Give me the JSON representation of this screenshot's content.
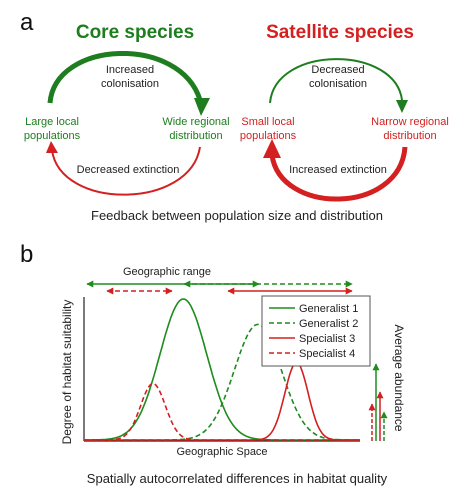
{
  "panel_a": {
    "label": "a",
    "core": {
      "title": "Core species",
      "top_line1": "Increased",
      "top_line2": "colonisation",
      "left_line1": "Large local",
      "left_line2": "populations",
      "right_line1": "Wide regional",
      "right_line2": "distribution",
      "bottom": "Decreased extinction"
    },
    "satellite": {
      "title": "Satellite species",
      "top_line1": "Decreased",
      "top_line2": "colonisation",
      "left_line1": "Small local",
      "left_line2": "populations",
      "right_line1": "Narrow regional",
      "right_line2": "distribution",
      "bottom": "Increased extinction"
    },
    "caption": "Feedback between population size and distribution",
    "colors": {
      "green": "#1e7d1e",
      "red": "#d42020"
    }
  },
  "panel_b": {
    "label": "b",
    "range_label": "Geographic range",
    "caption": "Spatially autocorrelated differences in habitat quality",
    "chart_data": {
      "type": "line",
      "xlabel": "Geographic Space",
      "ylabel": "Degree of habitat suitability",
      "right_label": "Average abundance",
      "series": [
        {
          "name": "Generalist 1",
          "color": "#1e8c1e",
          "dash": "solid",
          "center": 0.36,
          "sd": 0.085,
          "height": 1.0
        },
        {
          "name": "Generalist 2",
          "color": "#1e8c1e",
          "dash": "dashed",
          "center": 0.63,
          "sd": 0.085,
          "height": 0.82
        },
        {
          "name": "Specialist 3",
          "color": "#d42020",
          "dash": "solid",
          "center": 0.77,
          "sd": 0.042,
          "height": 0.55
        },
        {
          "name": "Specialist 4",
          "color": "#d42020",
          "dash": "dashed",
          "center": 0.25,
          "sd": 0.045,
          "height": 0.4
        }
      ]
    }
  }
}
